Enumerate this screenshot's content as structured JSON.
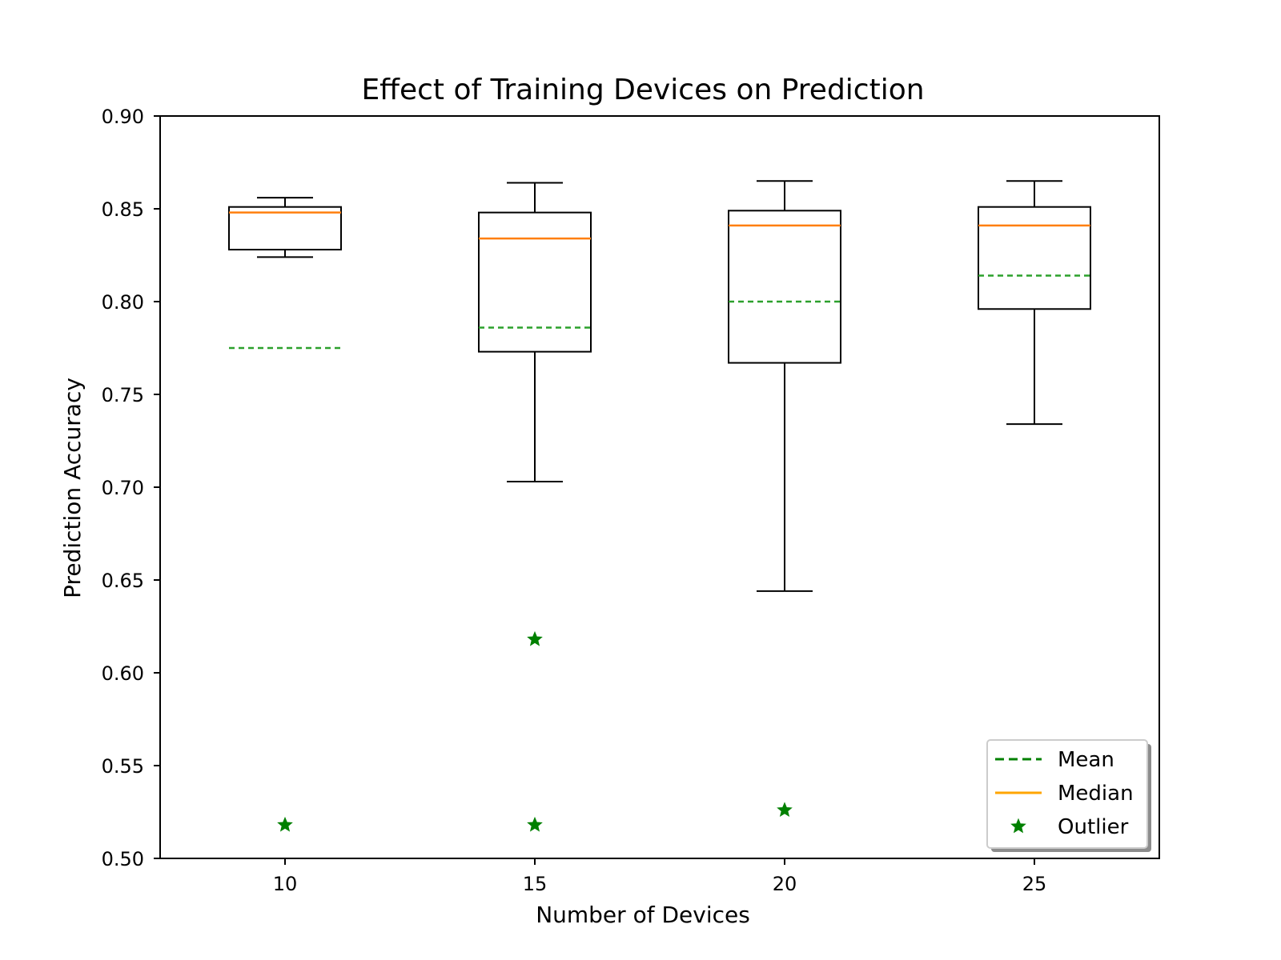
{
  "chart_data": {
    "type": "box",
    "title": "Effect of Training Devices on Prediction",
    "xlabel": "Number of Devices",
    "ylabel": "Prediction Accuracy",
    "ylim": [
      0.5,
      0.9
    ],
    "yticks": [
      "0.50",
      "0.55",
      "0.60",
      "0.65",
      "0.70",
      "0.75",
      "0.80",
      "0.85",
      "0.90"
    ],
    "xticks": [
      "10",
      "15",
      "20",
      "25"
    ],
    "grid": false,
    "legend_position": "bottom-right",
    "legend": [
      {
        "label": "Mean",
        "style": "dashed-line",
        "color": "#008000"
      },
      {
        "label": "Median",
        "style": "solid-line",
        "color": "#ffa500"
      },
      {
        "label": "Outlier",
        "style": "star-marker",
        "color": "#008000"
      }
    ],
    "colors": {
      "box": "#000000",
      "median": "#ff7f0e",
      "mean": "#2ca02c",
      "outlier": "#008000"
    },
    "boxes": [
      {
        "category": "10",
        "whisker_low": 0.824,
        "q1": 0.828,
        "median": 0.848,
        "q3": 0.851,
        "whisker_high": 0.856,
        "mean": 0.775,
        "outliers": [
          0.518
        ]
      },
      {
        "category": "15",
        "whisker_low": 0.703,
        "q1": 0.773,
        "median": 0.834,
        "q3": 0.848,
        "whisker_high": 0.864,
        "mean": 0.786,
        "outliers": [
          0.618,
          0.518
        ]
      },
      {
        "category": "20",
        "whisker_low": 0.644,
        "q1": 0.767,
        "median": 0.841,
        "q3": 0.849,
        "whisker_high": 0.865,
        "mean": 0.8,
        "outliers": [
          0.526
        ]
      },
      {
        "category": "25",
        "whisker_low": 0.734,
        "q1": 0.796,
        "median": 0.841,
        "q3": 0.851,
        "whisker_high": 0.865,
        "mean": 0.814,
        "outliers": []
      }
    ]
  }
}
